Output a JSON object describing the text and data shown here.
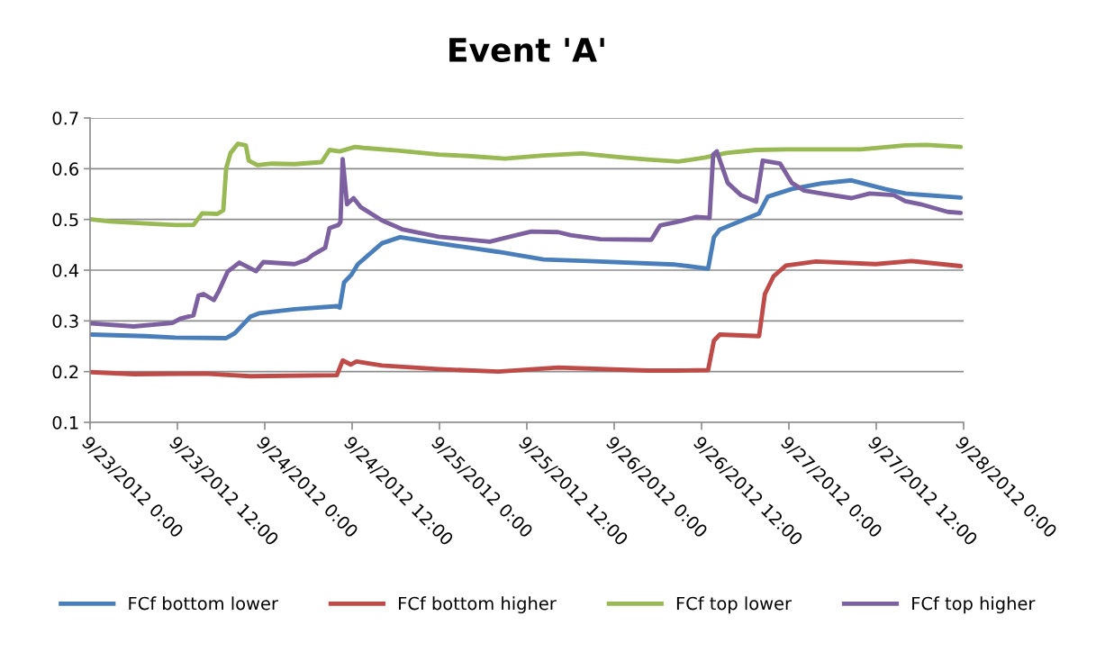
{
  "chart_data": {
    "type": "line",
    "title": "Event 'A'",
    "xlim": [
      "2012-09-23T00:00",
      "2012-09-28T00:00"
    ],
    "xticks": [
      {
        "value": "2012-09-23T00:00",
        "label": "9/23/2012 0:00"
      },
      {
        "value": "2012-09-23T12:00",
        "label": "9/23/2012 12:00"
      },
      {
        "value": "2012-09-24T00:00",
        "label": "9/24/2012 0:00"
      },
      {
        "value": "2012-09-24T12:00",
        "label": "9/24/2012 12:00"
      },
      {
        "value": "2012-09-25T00:00",
        "label": "9/25/2012 0:00"
      },
      {
        "value": "2012-09-25T12:00",
        "label": "9/25/2012 12:00"
      },
      {
        "value": "2012-09-26T00:00",
        "label": "9/26/2012 0:00"
      },
      {
        "value": "2012-09-26T12:00",
        "label": "9/26/2012 12:00"
      },
      {
        "value": "2012-09-27T00:00",
        "label": "9/27/2012 0:00"
      },
      {
        "value": "2012-09-27T12:00",
        "label": "9/27/2012 12:00"
      },
      {
        "value": "2012-09-28T00:00",
        "label": "9/28/2012 0:00"
      }
    ],
    "ylim": [
      0.1,
      0.7
    ],
    "yticks": [
      0.1,
      0.2,
      0.3,
      0.4,
      0.5,
      0.6,
      0.7
    ],
    "grid": "y",
    "legend": "bottom",
    "marker": "none",
    "line_style": "solid",
    "series": [
      {
        "name": "FCf bottom lower",
        "color": "#4a7ebb",
        "x": [
          "2012-09-23T00:12",
          "2012-09-23T07:36",
          "2012-09-23T11:42",
          "2012-09-23T18:42",
          "2012-09-23T19:54",
          "2012-09-23T22:00",
          "2012-09-23T23:12",
          "2012-09-24T04:06",
          "2012-09-24T09:54",
          "2012-09-24T10:18",
          "2012-09-24T10:54",
          "2012-09-24T11:54",
          "2012-09-24T12:48",
          "2012-09-24T16:06",
          "2012-09-24T18:36",
          "2012-09-24T23:54",
          "2012-09-25T08:06",
          "2012-09-25T14:18",
          "2012-09-25T20:24",
          "2012-09-26T08:24",
          "2012-09-26T12:54",
          "2012-09-26T13:42",
          "2012-09-26T14:30",
          "2012-09-26T19:54",
          "2012-09-26T21:06",
          "2012-09-27T00:24",
          "2012-09-27T04:30",
          "2012-09-27T08:36",
          "2012-09-27T13:12",
          "2012-09-27T16:00",
          "2012-09-27T23:36"
        ],
        "values": [
          0.273,
          0.27,
          0.267,
          0.266,
          0.276,
          0.308,
          0.315,
          0.323,
          0.329,
          0.326,
          0.376,
          0.391,
          0.412,
          0.453,
          0.465,
          0.453,
          0.436,
          0.421,
          0.418,
          0.411,
          0.403,
          0.465,
          0.48,
          0.512,
          0.545,
          0.56,
          0.571,
          0.577,
          0.56,
          0.551,
          0.543
        ]
      },
      {
        "name": "FCf bottom higher",
        "color": "#be4b48",
        "x": [
          "2012-09-23T00:12",
          "2012-09-23T06:00",
          "2012-09-23T15:48",
          "2012-09-23T22:00",
          "2012-09-24T09:54",
          "2012-09-24T10:42",
          "2012-09-24T11:48",
          "2012-09-24T12:36",
          "2012-09-24T16:06",
          "2012-09-24T23:54",
          "2012-09-25T08:06",
          "2012-09-25T16:18",
          "2012-09-26T04:36",
          "2012-09-26T08:24",
          "2012-09-26T12:54",
          "2012-09-26T13:42",
          "2012-09-26T14:30",
          "2012-09-26T19:54",
          "2012-09-26T20:42",
          "2012-09-26T21:54",
          "2012-09-26T23:36",
          "2012-09-27T03:42",
          "2012-09-27T11:54",
          "2012-09-27T16:48",
          "2012-09-27T23:36"
        ],
        "values": [
          0.199,
          0.195,
          0.196,
          0.191,
          0.193,
          0.222,
          0.214,
          0.22,
          0.212,
          0.205,
          0.2,
          0.208,
          0.202,
          0.202,
          0.203,
          0.261,
          0.273,
          0.27,
          0.353,
          0.388,
          0.409,
          0.417,
          0.412,
          0.418,
          0.408
        ]
      },
      {
        "name": "FCf top lower",
        "color": "#98b954",
        "x": [
          "2012-09-23T00:12",
          "2012-09-23T02:42",
          "2012-09-23T07:36",
          "2012-09-23T11:42",
          "2012-09-23T14:12",
          "2012-09-23T15:24",
          "2012-09-23T17:30",
          "2012-09-23T18:18",
          "2012-09-23T18:42",
          "2012-09-23T19:18",
          "2012-09-23T20:18",
          "2012-09-23T21:24",
          "2012-09-23T21:48",
          "2012-09-23T23:00",
          "2012-09-24T00:54",
          "2012-09-24T04:06",
          "2012-09-24T07:48",
          "2012-09-24T08:54",
          "2012-09-24T10:18",
          "2012-09-24T12:24",
          "2012-09-24T13:36",
          "2012-09-24T18:12",
          "2012-09-24T23:54",
          "2012-09-25T04:00",
          "2012-09-25T09:00",
          "2012-09-25T14:18",
          "2012-09-25T19:36",
          "2012-09-26T00:30",
          "2012-09-26T04:36",
          "2012-09-26T08:48",
          "2012-09-26T12:30",
          "2012-09-26T15:24",
          "2012-09-26T19:30",
          "2012-09-26T23:36",
          "2012-09-27T09:54",
          "2012-09-27T16:00",
          "2012-09-27T18:54",
          "2012-09-27T23:36"
        ],
        "values": [
          0.5,
          0.496,
          0.492,
          0.489,
          0.489,
          0.512,
          0.511,
          0.518,
          0.601,
          0.631,
          0.649,
          0.646,
          0.616,
          0.607,
          0.61,
          0.609,
          0.613,
          0.637,
          0.634,
          0.643,
          0.641,
          0.636,
          0.628,
          0.625,
          0.62,
          0.626,
          0.63,
          0.623,
          0.618,
          0.614,
          0.622,
          0.631,
          0.637,
          0.638,
          0.638,
          0.646,
          0.647,
          0.643
        ]
      },
      {
        "name": "FCf top higher",
        "color": "#7d60a0",
        "x": [
          "2012-09-23T00:12",
          "2012-09-23T06:00",
          "2012-09-23T11:18",
          "2012-09-23T12:30",
          "2012-09-23T14:12",
          "2012-09-23T14:54",
          "2012-09-23T15:36",
          "2012-09-23T17:00",
          "2012-09-23T17:42",
          "2012-09-23T18:54",
          "2012-09-23T20:30",
          "2012-09-23T22:48",
          "2012-09-23T23:48",
          "2012-09-24T04:06",
          "2012-09-24T05:48",
          "2012-09-24T06:36",
          "2012-09-24T08:18",
          "2012-09-24T08:54",
          "2012-09-24T10:06",
          "2012-09-24T10:24",
          "2012-09-24T10:42",
          "2012-09-24T11:18",
          "2012-09-24T12:12",
          "2012-09-24T13:12",
          "2012-09-24T16:06",
          "2012-09-24T19:00",
          "2012-09-24T23:54",
          "2012-09-25T06:54",
          "2012-09-25T09:24",
          "2012-09-25T12:36",
          "2012-09-25T16:18",
          "2012-09-25T18:00",
          "2012-09-25T22:06",
          "2012-09-26T05:06",
          "2012-09-26T06:18",
          "2012-09-26T09:12",
          "2012-09-26T11:18",
          "2012-09-26T13:06",
          "2012-09-26T13:36",
          "2012-09-26T14:06",
          "2012-09-26T15:36",
          "2012-09-26T17:24",
          "2012-09-26T19:30",
          "2012-09-26T20:24",
          "2012-09-26T22:48",
          "2012-09-27T00:24",
          "2012-09-27T02:06",
          "2012-09-27T04:30",
          "2012-09-27T08:36",
          "2012-09-27T11:06",
          "2012-09-27T14:24",
          "2012-09-27T16:00",
          "2012-09-27T18:06",
          "2012-09-27T21:48",
          "2012-09-27T23:36"
        ],
        "values": [
          0.295,
          0.289,
          0.296,
          0.305,
          0.311,
          0.35,
          0.353,
          0.341,
          0.359,
          0.397,
          0.415,
          0.398,
          0.416,
          0.412,
          0.421,
          0.43,
          0.444,
          0.483,
          0.489,
          0.495,
          0.619,
          0.53,
          0.542,
          0.524,
          0.498,
          0.48,
          0.466,
          0.456,
          0.465,
          0.476,
          0.475,
          0.469,
          0.461,
          0.46,
          0.488,
          0.497,
          0.505,
          0.503,
          0.628,
          0.634,
          0.572,
          0.548,
          0.535,
          0.616,
          0.61,
          0.572,
          0.557,
          0.551,
          0.542,
          0.551,
          0.548,
          0.536,
          0.53,
          0.515,
          0.513
        ]
      }
    ]
  }
}
